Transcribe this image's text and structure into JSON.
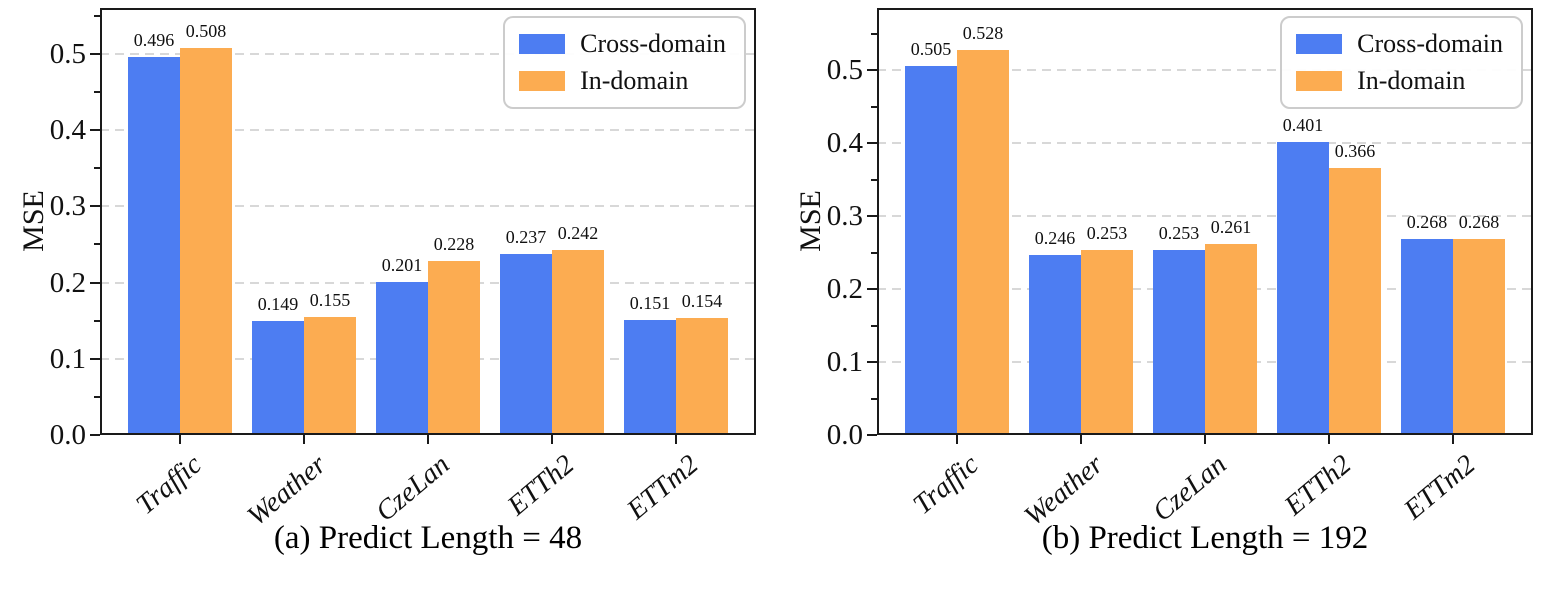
{
  "figure": {
    "axis_color": "#1a1a1a",
    "grid_color": "#d8d8d8",
    "legend_border_color": "#cccccc"
  },
  "chart_data": [
    {
      "type": "bar",
      "title": "(a) Predict Length = 48",
      "ylabel": "MSE",
      "categories": [
        "Traffic",
        "Weather",
        "CzeLan",
        "ETTh2",
        "ETTm2"
      ],
      "series": [
        {
          "name": "Cross-domain",
          "color": "#4d7df2",
          "values": [
            0.496,
            0.149,
            0.201,
            0.237,
            0.151
          ]
        },
        {
          "name": "In-domain",
          "color": "#fcac51",
          "values": [
            0.508,
            0.155,
            0.228,
            0.242,
            0.154
          ]
        }
      ],
      "ylim": [
        0,
        0.56
      ],
      "yticks": [
        0.0,
        0.1,
        0.2,
        0.3,
        0.4,
        0.5
      ],
      "grid": true,
      "legend_position": "upper right",
      "value_labels": true
    },
    {
      "type": "bar",
      "title": "(b) Predict Length = 192",
      "ylabel": "MSE",
      "categories": [
        "Traffic",
        "Weather",
        "CzeLan",
        "ETTh2",
        "ETTm2"
      ],
      "series": [
        {
          "name": "Cross-domain",
          "color": "#4d7df2",
          "values": [
            0.505,
            0.246,
            0.253,
            0.401,
            0.268
          ]
        },
        {
          "name": "In-domain",
          "color": "#fcac51",
          "values": [
            0.528,
            0.253,
            0.261,
            0.366,
            0.268
          ]
        }
      ],
      "ylim": [
        0,
        0.585
      ],
      "yticks": [
        0.0,
        0.1,
        0.2,
        0.3,
        0.4,
        0.5
      ],
      "grid": true,
      "legend_position": "upper right",
      "value_labels": true
    }
  ]
}
